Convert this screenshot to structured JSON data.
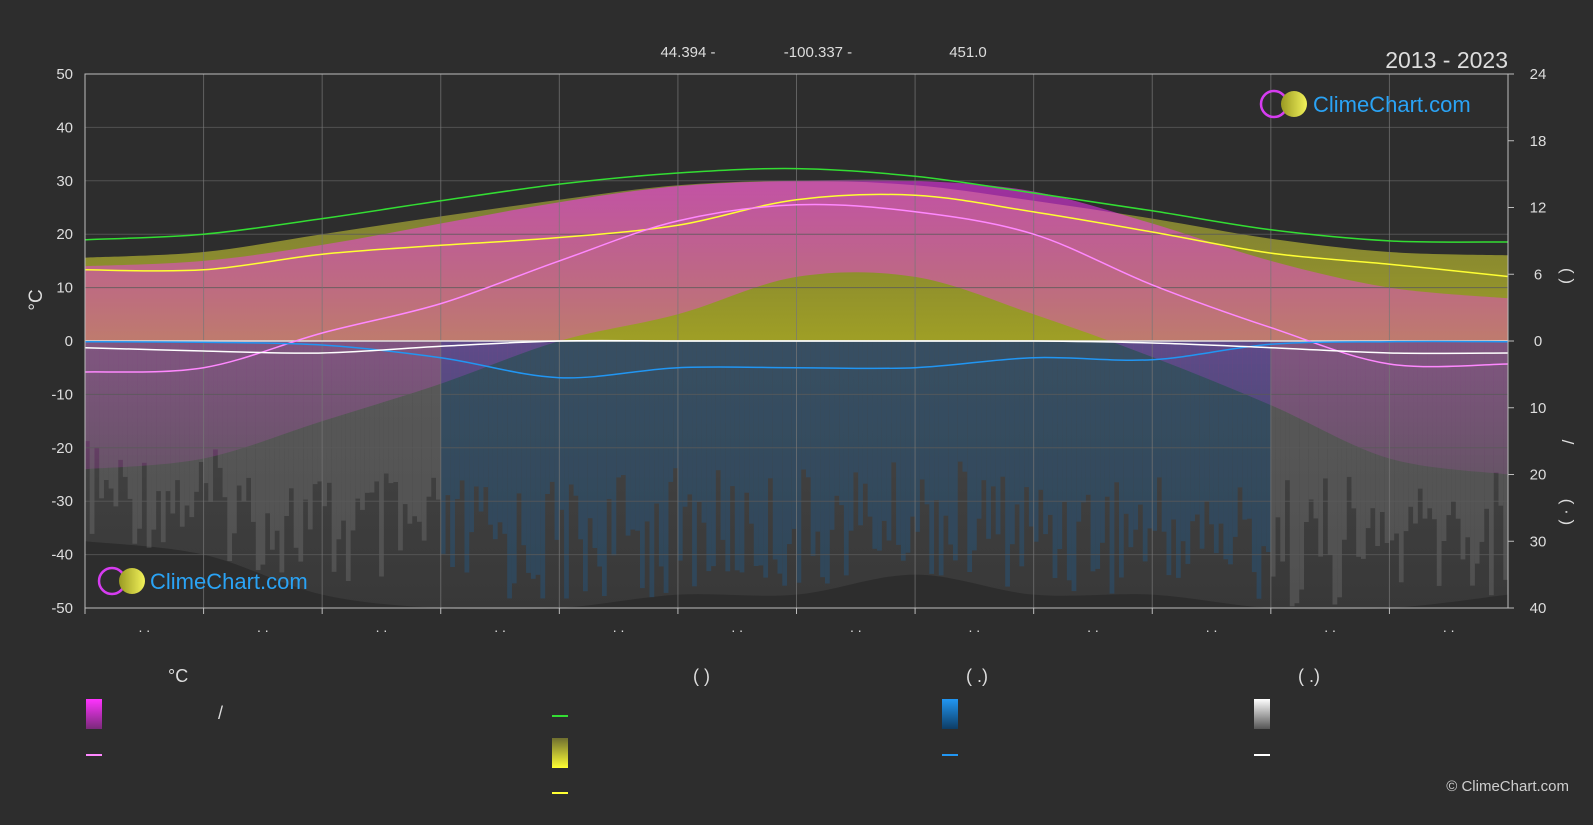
{
  "header": {
    "lat_label": "44.394 -",
    "lon_label": "-100.337 -",
    "elev_label": "451.0",
    "period": "2013 - 2023"
  },
  "branding": {
    "logo_text": "ClimeChart.com",
    "copyright": "© ClimeChart.com"
  },
  "colors": {
    "background": "#2d2d2d",
    "grid": "#5a5a5a",
    "axis_text": "#dddddd",
    "logo_blue": "#2aa3f5",
    "sunshine_line": "#ffff33",
    "daylight_line": "#33dd33",
    "max_temp_line": "#ff88ff",
    "min_temp_line": "#ff66ff",
    "rain_line": "#2196f3",
    "snow_line": "#ffffff",
    "temp_band": "#ff33ff",
    "sunshine_band": "#b3b324",
    "rain_bar": "#1e5f96",
    "snow_bar": "#7d7d7d"
  },
  "chart_data": {
    "type": "line",
    "x_months": 12,
    "x_tick_labels": [
      ". .",
      ". .",
      ". .",
      ". .",
      ". .",
      ". .",
      ". .",
      ". .",
      ". .",
      ". .",
      ". .",
      ". ."
    ],
    "left_axis": {
      "label": "°C",
      "ylim": [
        -50,
        50
      ],
      "ticks": [
        50,
        40,
        30,
        20,
        10,
        0,
        -10,
        -20,
        -30,
        -40,
        -50
      ]
    },
    "right_axis_top": {
      "label": "(   )",
      "ylim": [
        0,
        24
      ],
      "ticks": [
        24,
        18,
        12,
        6,
        0
      ]
    },
    "right_axis_bottom": {
      "label": "/",
      "ylim": [
        0,
        40
      ],
      "ticks": [
        10,
        20,
        30,
        40
      ],
      "sub_label": "( · )"
    },
    "series": [
      {
        "key": "daylight",
        "axis": "hours",
        "values": [
          9.1,
          9.6,
          11.0,
          12.6,
          14.1,
          15.1,
          15.5,
          14.8,
          13.3,
          11.7,
          10.0,
          9.0,
          8.9
        ]
      },
      {
        "key": "sunshine",
        "axis": "hours",
        "values": [
          6.4,
          6.4,
          7.8,
          8.6,
          9.3,
          10.4,
          12.7,
          13.1,
          11.6,
          9.8,
          7.9,
          6.9,
          5.8
        ]
      },
      {
        "key": "max_temp",
        "axis": "temp",
        "values": [
          -5.8,
          -5.0,
          1.5,
          7.0,
          15.0,
          22.5,
          25.5,
          24.2,
          20.0,
          10.5,
          2.5,
          -4.3,
          -4.3
        ]
      },
      {
        "key": "min_temp",
        "axis": "temp",
        "values": [
          -0.6,
          -1.0,
          -0.8,
          -1.2,
          -0.2,
          0.0,
          0.0,
          0.0,
          0.0,
          -0.2,
          -0.5,
          -1.0,
          -1.3
        ]
      },
      {
        "key": "rain",
        "axis": "precip",
        "values": [
          0.1,
          0.2,
          0.6,
          2.5,
          5.5,
          4.0,
          4.0,
          4.0,
          2.5,
          2.8,
          0.5,
          0.1,
          0.1
        ]
      },
      {
        "key": "snow",
        "axis": "precip",
        "values": [
          1.0,
          1.5,
          1.8,
          0.8,
          0.0,
          0.0,
          0.0,
          0.0,
          0.0,
          0.3,
          1.0,
          1.8,
          1.8
        ]
      }
    ],
    "bands": {
      "temp_top": [
        14,
        15,
        18,
        22,
        26,
        29,
        30,
        30,
        28,
        22,
        15,
        10,
        8
      ],
      "temp_bottom": [
        -24,
        -22,
        -15,
        -8,
        0,
        5,
        12,
        12,
        5,
        -3,
        -12,
        -22,
        -25
      ],
      "sunshine_top_hours": [
        7.5,
        8.0,
        9.6,
        11.2,
        12.7,
        14.0,
        14.4,
        14.0,
        12.6,
        11.0,
        9.2,
        8.0,
        7.7
      ],
      "precip_max": [
        30,
        32,
        38,
        40,
        40,
        38,
        38,
        35,
        38,
        38,
        40,
        40,
        38
      ]
    },
    "grid": true
  },
  "legend": {
    "col1": {
      "header": "°C",
      "row1_label": "/",
      "row2_label": ""
    },
    "col2": {
      "header": "(        )",
      "row1_label": "",
      "row2_label": "",
      "row3_label": ""
    },
    "col3": {
      "header": "(   .)",
      "row1_label": "",
      "row2_label": ""
    },
    "col4": {
      "header": "(   .)",
      "row1_label": "",
      "row2_label": ""
    }
  }
}
